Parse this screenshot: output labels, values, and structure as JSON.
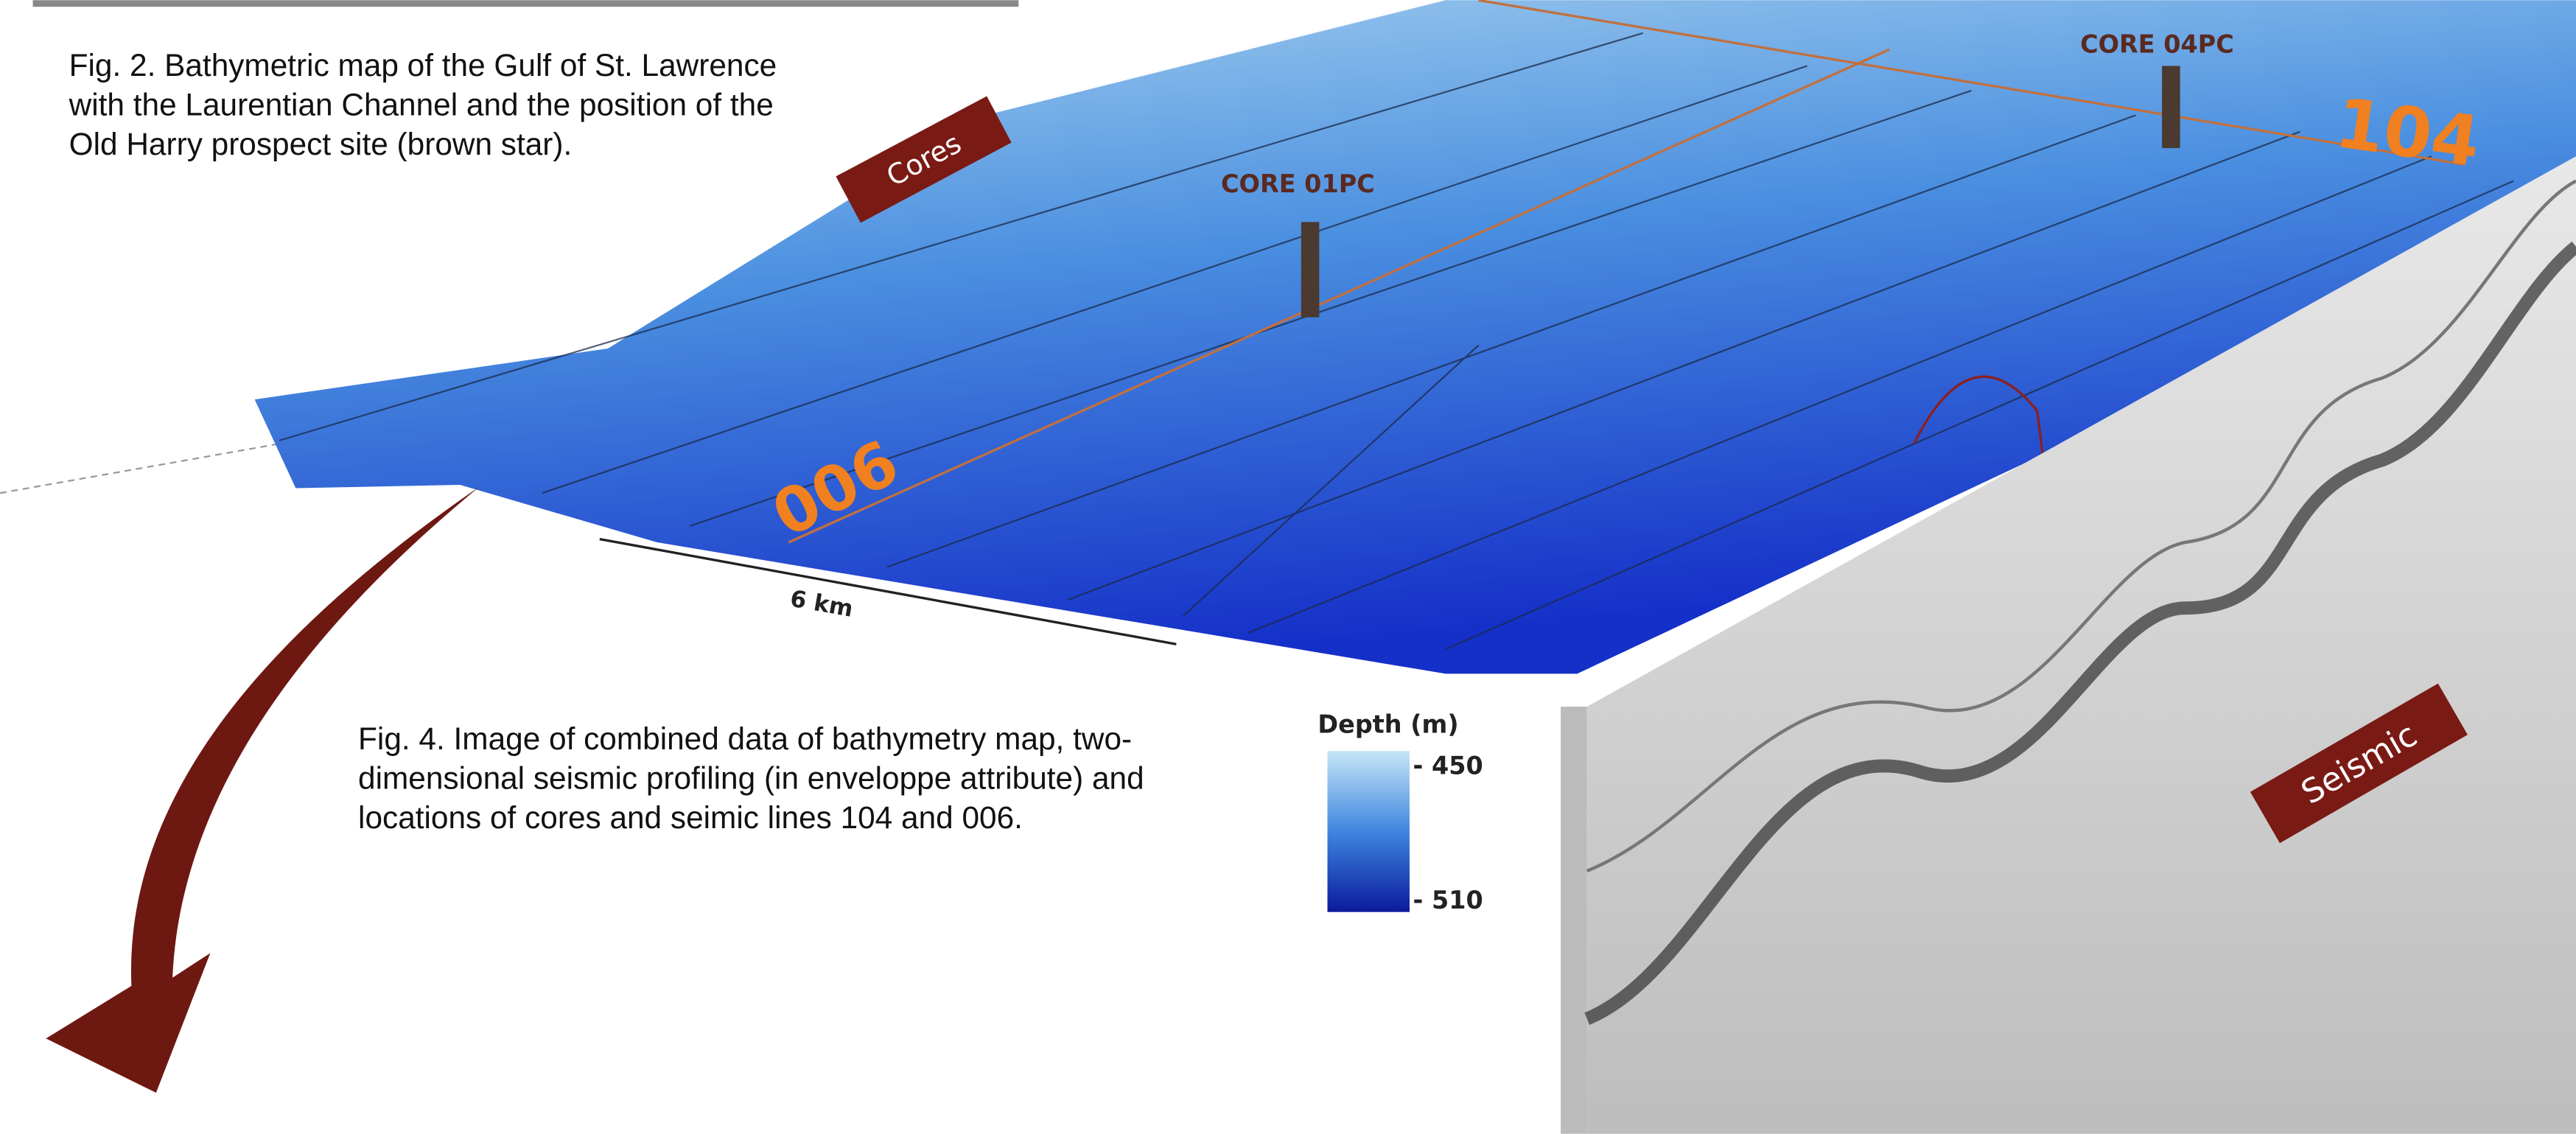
{
  "fig2_caption": {
    "lines": [
      "Fig. 2. Bathymetric map of the Gulf of St. Lawrence",
      "with the Laurentian Channel and the position of the",
      "Old Harry prospect site (brown star)."
    ]
  },
  "fig4_caption": {
    "lines": [
      "Fig. 4. Image of combined data of bathymetry map, two-",
      "dimensional seismic profiling (in enveloppe attribute) and",
      "locations of cores and seimic lines 104 and 006."
    ]
  },
  "map": {
    "cores_tag": "Cores",
    "core_01": "CORE 01PC",
    "core_04": "CORE 04PC",
    "line_104": "104",
    "line_006": "006",
    "scale_bar": "6 km",
    "seismic_tag": "Seismic"
  },
  "legend": {
    "title": "Depth (m)",
    "top_label": "- 450",
    "bottom_label": "- 510"
  }
}
